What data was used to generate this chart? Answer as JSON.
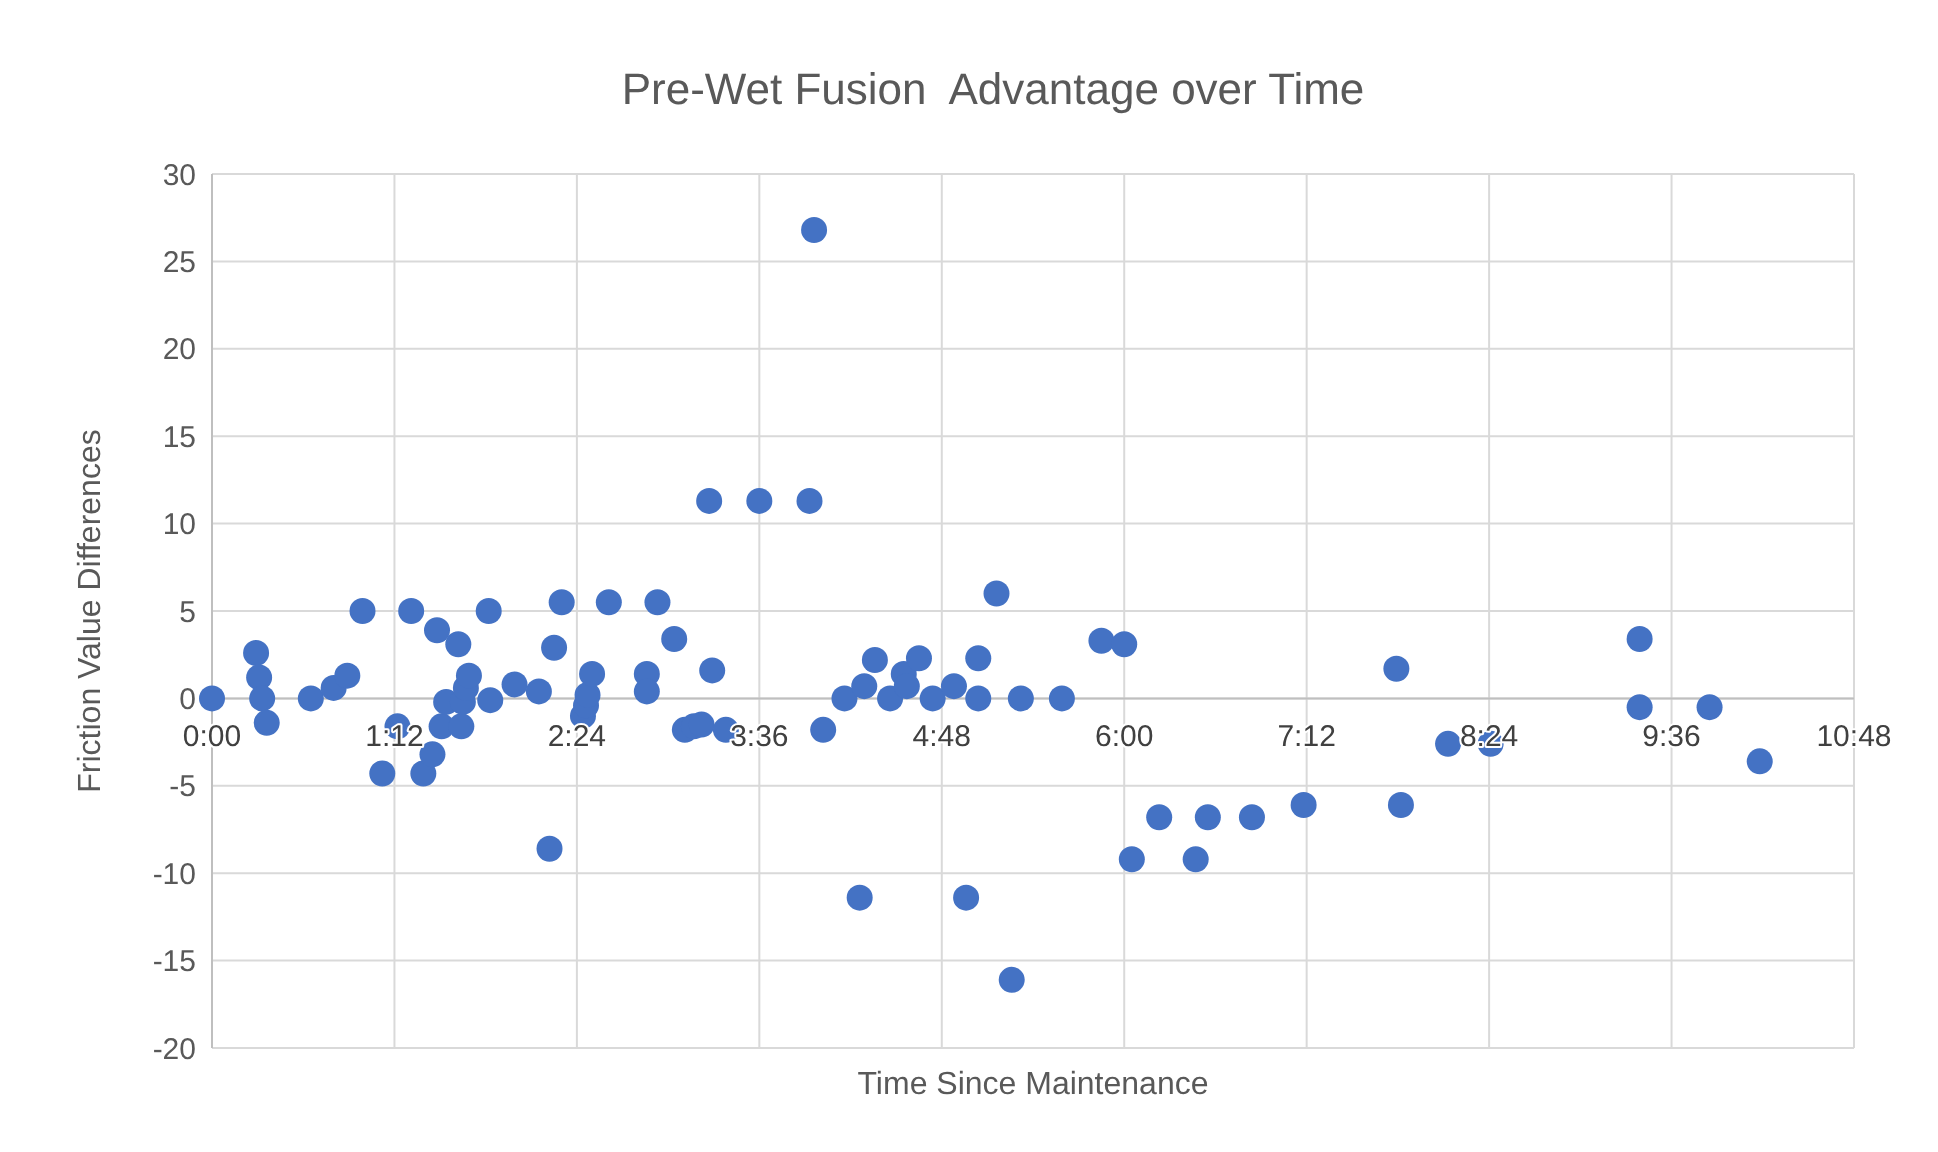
{
  "chart_data": {
    "type": "scatter",
    "title": "Pre-Wet Fusion  Advantage over Time",
    "xlabel": "Time Since Maintenance",
    "ylabel": "Friction Value Differences",
    "xlim": [
      0,
      10.8
    ],
    "xticks": [
      {
        "value": 0,
        "label": "0:00"
      },
      {
        "value": 1.2,
        "label": "1:12"
      },
      {
        "value": 2.4,
        "label": "2:24"
      },
      {
        "value": 3.6,
        "label": "3:36"
      },
      {
        "value": 4.8,
        "label": "4:48"
      },
      {
        "value": 6,
        "label": "6:00"
      },
      {
        "value": 7.2,
        "label": "7:12"
      },
      {
        "value": 8.4,
        "label": "8:24"
      },
      {
        "value": 9.6,
        "label": "9:36"
      },
      {
        "value": 10.8,
        "label": "10:48"
      }
    ],
    "ylim": [
      -20,
      30
    ],
    "yticks": [
      -20,
      -15,
      -10,
      -5,
      0,
      5,
      10,
      15,
      20,
      25,
      30
    ],
    "grid": true,
    "marker": "circle",
    "series": [
      {
        "color": "#4472c4",
        "x": [
          0,
          0.29,
          0.31,
          0.33,
          0.36,
          0.65,
          0.8,
          0.89,
          0.99,
          1.12,
          1.22,
          1.31,
          1.39,
          1.45,
          1.48,
          1.51,
          1.54,
          1.62,
          1.64,
          1.65,
          1.67,
          1.69,
          1.82,
          1.83,
          1.99,
          2.15,
          2.22,
          2.25,
          2.3,
          2.44,
          2.46,
          2.47,
          2.5,
          2.61,
          2.86,
          2.86,
          2.93,
          3.04,
          3.11,
          3.17,
          3.22,
          3.27,
          3.29,
          3.38,
          3.6,
          3.93,
          3.96,
          4.02,
          4.16,
          4.26,
          4.29,
          4.36,
          4.46,
          4.55,
          4.57,
          4.65,
          4.74,
          4.88,
          4.96,
          5.04,
          5.04,
          5.16,
          5.26,
          5.32,
          5.59,
          5.85,
          6.0,
          6.05,
          6.23,
          6.47,
          6.55,
          6.84,
          7.18,
          7.79,
          7.82,
          8.13,
          8.41,
          9.39,
          9.39,
          9.85,
          10.18
        ],
        "values": [
          0,
          2.6,
          1.2,
          0,
          -1.4,
          0,
          0.6,
          1.3,
          5,
          -4.3,
          -1.6,
          5,
          -4.3,
          -3.2,
          3.9,
          -1.6,
          -0.2,
          3.1,
          -1.6,
          -0.2,
          0.6,
          1.3,
          5,
          -0.1,
          0.8,
          0.4,
          -8.6,
          2.9,
          5.5,
          -1,
          -0.4,
          0.2,
          1.4,
          5.5,
          1.4,
          0.4,
          5.5,
          3.4,
          -1.8,
          -1.6,
          -1.5,
          11.3,
          1.6,
          -1.8,
          11.3,
          11.3,
          26.8,
          -1.8,
          0,
          -11.4,
          0.7,
          2.2,
          0,
          1.4,
          0.7,
          2.3,
          0,
          0.7,
          -11.4,
          2.3,
          0,
          6,
          -16.1,
          0,
          0,
          3.3,
          3.1,
          -9.2,
          -6.8,
          -9.2,
          -6.8,
          -6.8,
          -6.1,
          1.7,
          -6.1,
          -2.6,
          -2.6,
          3.4,
          -0.5,
          -0.5,
          -3.6
        ]
      }
    ]
  }
}
